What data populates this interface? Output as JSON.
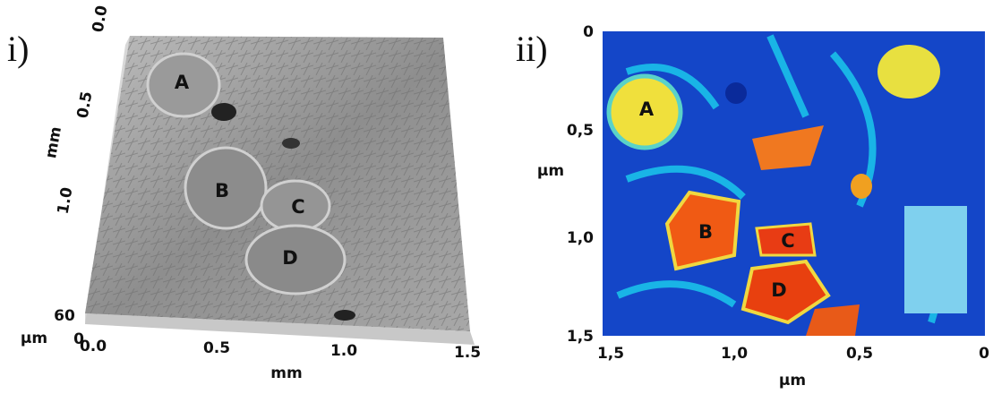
{
  "panels": [
    {
      "label": "i)",
      "regions": [
        "A",
        "B",
        "C",
        "D"
      ],
      "y_axis": {
        "label": "mm",
        "ticks": [
          "0.0",
          "0.5",
          "1.0"
        ]
      },
      "x_axis": {
        "label": "mm",
        "ticks": [
          "0.0",
          "0.5",
          "1.0",
          "1.5"
        ]
      },
      "z_axis": {
        "label": "µm",
        "ticks": [
          "60",
          "0"
        ]
      }
    },
    {
      "label": "ii)",
      "regions": [
        "A",
        "B",
        "C",
        "D"
      ],
      "y_axis": {
        "label": "µm",
        "ticks": [
          "0",
          "0,5",
          "1,0",
          "1,5"
        ]
      },
      "x_axis": {
        "label": "µm",
        "ticks": [
          "1,5",
          "1,0",
          "0,5",
          "0"
        ]
      }
    }
  ]
}
